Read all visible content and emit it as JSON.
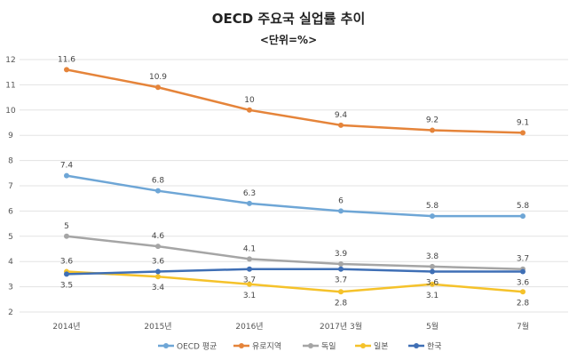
{
  "chart_data": {
    "type": "line",
    "title": "OECD 주요국 실업률 추이",
    "subtitle": "<단위=%>",
    "categories": [
      "2014년",
      "2015년",
      "2016년",
      "2017년 3월",
      "5월",
      "7월"
    ],
    "ylim": [
      2,
      12
    ],
    "yticks": [
      2,
      3,
      4,
      5,
      6,
      7,
      8,
      9,
      10,
      11,
      12
    ],
    "grid": true,
    "legend": "bottom",
    "series": [
      {
        "name": "OECD 평균",
        "color": "#6ea6d6",
        "values": [
          7.4,
          6.8,
          6.3,
          6,
          5.8,
          5.8
        ],
        "labelPos": [
          "above",
          "above",
          "above",
          "above",
          "above",
          "above"
        ]
      },
      {
        "name": "유로지역",
        "color": "#e5843a",
        "values": [
          11.6,
          10.9,
          10,
          9.4,
          9.2,
          9.1
        ],
        "labelPos": [
          "above",
          "above",
          "above",
          "above",
          "above",
          "above"
        ]
      },
      {
        "name": "독일",
        "color": "#a5a5a5",
        "values": [
          5,
          4.6,
          4.1,
          3.9,
          3.8,
          3.7
        ],
        "labelPos": [
          "above",
          "above",
          "above",
          "above",
          "above",
          "above"
        ]
      },
      {
        "name": "일본",
        "color": "#f5c22a",
        "values": [
          3.6,
          3.4,
          3.1,
          2.8,
          3.1,
          2.8
        ],
        "labelPos": [
          "above",
          "below",
          "below",
          "below",
          "below",
          "below"
        ]
      },
      {
        "name": "한국",
        "color": "#3f6fb5",
        "values": [
          3.5,
          3.6,
          3.7,
          3.7,
          3.6,
          3.6
        ],
        "labelPos": [
          "below",
          "above",
          "below",
          "below",
          "below",
          "below"
        ]
      }
    ]
  }
}
